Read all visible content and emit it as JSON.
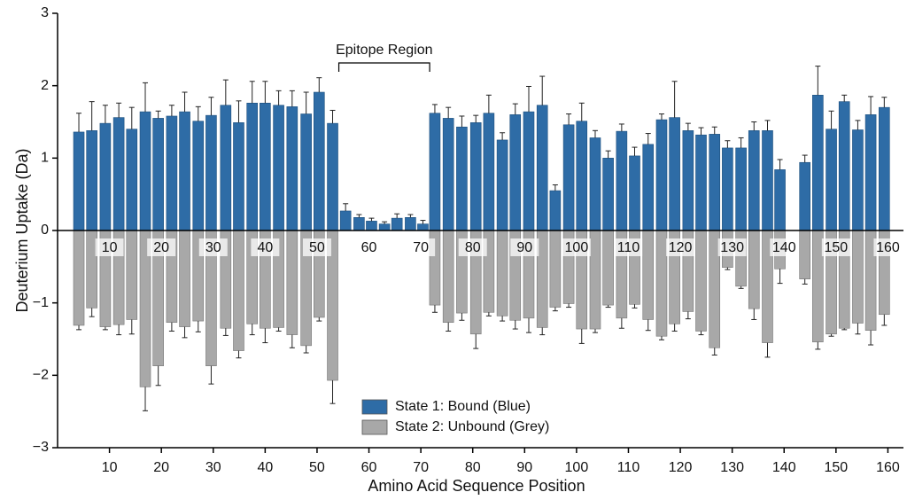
{
  "chart_data": {
    "type": "butterfly-bar",
    "x_label": "Amino Acid Sequence Position",
    "y_label": "Deuterium Uptake (Da)",
    "annotation": {
      "text": "Epitope Region",
      "start": 54.2,
      "end": 71.7
    },
    "x": [
      4.1,
      6.6,
      9.2,
      11.8,
      14.3,
      16.9,
      19.4,
      22.0,
      24.5,
      27.1,
      29.6,
      32.4,
      34.9,
      37.5,
      40.0,
      42.6,
      45.2,
      47.9,
      50.4,
      53.0,
      55.5,
      58.1,
      60.5,
      63.0,
      65.4,
      68.0,
      70.4,
      72.7,
      75.3,
      77.9,
      80.6,
      83.1,
      85.7,
      88.2,
      90.8,
      93.4,
      95.9,
      98.5,
      101.0,
      103.6,
      106.1,
      108.7,
      111.2,
      113.8,
      116.4,
      118.9,
      121.5,
      124.0,
      126.6,
      129.1,
      131.7,
      134.2,
      136.8,
      139.2,
      144.0,
      146.5,
      149.1,
      151.6,
      154.2,
      156.7,
      159.3
    ],
    "series": [
      {
        "name": "State 1: Bound (Blue)",
        "color": "#2e6ca6",
        "values": [
          1.36,
          1.38,
          1.48,
          1.56,
          1.4,
          1.64,
          1.55,
          1.58,
          1.64,
          1.51,
          1.59,
          1.73,
          1.49,
          1.76,
          1.76,
          1.73,
          1.71,
          1.61,
          1.91,
          1.48,
          0.27,
          0.18,
          0.13,
          0.09,
          0.17,
          0.18,
          0.09,
          1.62,
          1.55,
          1.43,
          1.49,
          1.62,
          1.25,
          1.6,
          1.64,
          1.73,
          0.55,
          1.46,
          1.51,
          1.28,
          1.0,
          1.37,
          1.03,
          1.19,
          1.53,
          1.56,
          1.38,
          1.32,
          1.33,
          1.14,
          1.14,
          1.38,
          1.38,
          0.84,
          0.94,
          1.87,
          1.4,
          1.78,
          1.39,
          1.6,
          1.7
        ],
        "errors": [
          0.26,
          0.4,
          0.25,
          0.2,
          0.3,
          0.4,
          0.1,
          0.15,
          0.27,
          0.2,
          0.25,
          0.35,
          0.3,
          0.3,
          0.3,
          0.2,
          0.22,
          0.3,
          0.2,
          0.18,
          0.1,
          0.04,
          0.04,
          0.03,
          0.06,
          0.04,
          0.05,
          0.12,
          0.15,
          0.15,
          0.1,
          0.25,
          0.1,
          0.15,
          0.35,
          0.4,
          0.08,
          0.15,
          0.25,
          0.1,
          0.1,
          0.1,
          0.12,
          0.15,
          0.08,
          0.5,
          0.1,
          0.1,
          0.1,
          0.1,
          0.14,
          0.12,
          0.14,
          0.14,
          0.1,
          0.4,
          0.25,
          0.09,
          0.13,
          0.25,
          0.14
        ]
      },
      {
        "name": "State 2: Unbound (Grey)",
        "color": "#a8a8a8",
        "values": [
          -1.31,
          -1.07,
          -1.33,
          -1.3,
          -1.23,
          -2.16,
          -1.87,
          -1.27,
          -1.33,
          -1.25,
          -1.87,
          -1.35,
          -1.66,
          -1.29,
          -1.35,
          -1.34,
          -1.44,
          -1.59,
          -1.2,
          -2.07,
          null,
          null,
          null,
          null,
          null,
          null,
          null,
          -1.03,
          -1.27,
          -1.14,
          -1.43,
          -1.13,
          -1.18,
          -1.24,
          -1.21,
          -1.34,
          -1.06,
          -1.01,
          -1.36,
          -1.36,
          -1.03,
          -1.21,
          -1.02,
          -1.23,
          -1.46,
          -1.29,
          -1.12,
          -1.39,
          -1.62,
          -0.51,
          -0.77,
          -1.08,
          -1.55,
          -0.53,
          -0.67,
          -1.54,
          -1.43,
          -1.35,
          -1.28,
          -1.38,
          -1.16
        ],
        "errors": [
          0.06,
          0.12,
          0.04,
          0.14,
          0.2,
          0.33,
          0.27,
          0.12,
          0.15,
          0.15,
          0.25,
          0.1,
          0.1,
          0.15,
          0.2,
          0.05,
          0.18,
          0.1,
          0.05,
          0.32,
          null,
          null,
          null,
          null,
          null,
          null,
          null,
          0.1,
          0.12,
          0.1,
          0.2,
          0.05,
          0.07,
          0.12,
          0.2,
          0.1,
          0.05,
          0.05,
          0.2,
          0.05,
          0.03,
          0.14,
          0.05,
          0.15,
          0.05,
          0.1,
          0.1,
          0.05,
          0.1,
          0.03,
          0.03,
          0.15,
          0.2,
          0.2,
          0.07,
          0.1,
          0.03,
          0.02,
          0.15,
          0.2,
          0.15
        ]
      }
    ],
    "xlim": [
      0,
      163
    ],
    "xticks": [
      10,
      20,
      30,
      40,
      50,
      60,
      70,
      80,
      90,
      100,
      110,
      120,
      130,
      140,
      150,
      160
    ],
    "ylim": [
      -3,
      3
    ],
    "yticks": [
      {
        "value": -3,
        "label": "−3"
      },
      {
        "value": -2,
        "label": "−2"
      },
      {
        "value": -1,
        "label": "−1"
      },
      0,
      1,
      2,
      3
    ],
    "legend": "bottom-center"
  }
}
